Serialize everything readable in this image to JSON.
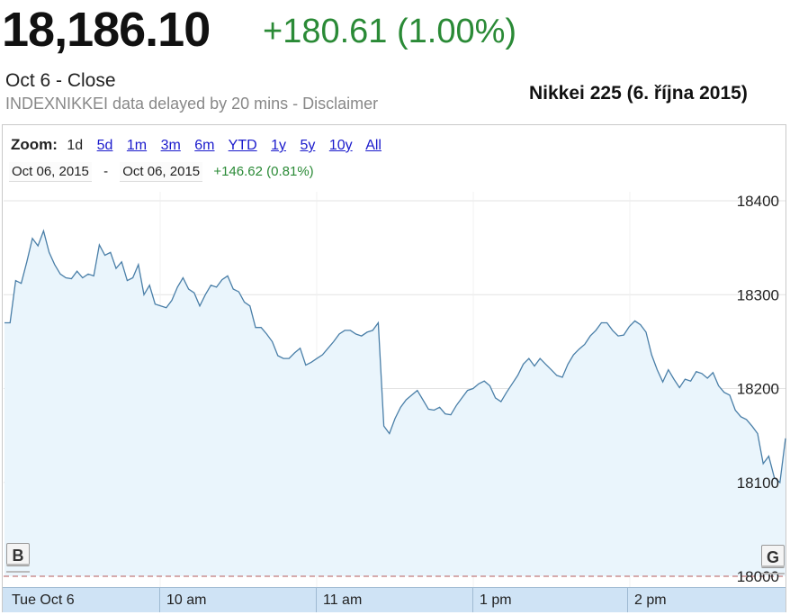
{
  "quote": {
    "price": "18,186.10",
    "change": "+180.61 (1.00%)",
    "close_label": "Oct 6 - Close",
    "delay_note": "INDEXNIKKEI data delayed by 20 mins - Disclaimer"
  },
  "caption": "Nikkei 225 (6. října 2015)",
  "zoom": {
    "label": "Zoom:",
    "options": [
      "1d",
      "5d",
      "1m",
      "3m",
      "6m",
      "YTD",
      "1y",
      "5y",
      "10y",
      "All"
    ],
    "active": "1d"
  },
  "range": {
    "start": "Oct 06, 2015",
    "separator": "-",
    "end": "Oct 06, 2015",
    "change": "+146.62 (0.81%)"
  },
  "nav": {
    "left": "B",
    "right": "G"
  },
  "time_axis": {
    "labels": [
      "Tue Oct 6",
      "10 am",
      "11 am",
      "1 pm",
      "2 pm"
    ]
  },
  "colors": {
    "line": "#4a7fa8",
    "fill": "#eaf5fc",
    "positive": "#2a8a36",
    "grid": "#e3e3e3",
    "baseline": "#b45a5a",
    "time_bar": "#cfe3f5"
  },
  "chart_data": {
    "type": "area",
    "title": "",
    "xlabel": "",
    "ylabel": "",
    "ylim": [
      18000,
      18400
    ],
    "yticks": [
      18000,
      18100,
      18200,
      18300,
      18400
    ],
    "xtick_labels": [
      "Tue Oct 6",
      "10 am",
      "11 am",
      "1 pm",
      "2 pm"
    ],
    "baseline": 18000,
    "series": [
      {
        "values": [
          18270,
          18270,
          18315,
          18312,
          18335,
          18360,
          18352,
          18368,
          18345,
          18332,
          18322,
          18318,
          18317,
          18325,
          18318,
          18322,
          18320,
          18353,
          18342,
          18345,
          18328,
          18335,
          18315,
          18318,
          18332,
          18300,
          18310,
          18290,
          18288,
          18286,
          18294,
          18308,
          18318,
          18306,
          18302,
          18288,
          18300,
          18310,
          18308,
          18316,
          18320,
          18306,
          18303,
          18292,
          18288,
          18265,
          18265,
          18258,
          18250,
          18235,
          18232,
          18232,
          18238,
          18243,
          18225,
          18228,
          18232,
          18236,
          18243,
          18250,
          18258,
          18262,
          18262,
          18258,
          18256,
          18260,
          18262,
          18270,
          18160,
          18152,
          18168,
          18180,
          18188,
          18193,
          18198,
          18188,
          18178,
          18177,
          18180,
          18173,
          18172,
          18182,
          18190,
          18198,
          18200,
          18205,
          18208,
          18203,
          18190,
          18186,
          18196,
          18205,
          18214,
          18226,
          18232,
          18224,
          18232,
          18226,
          18220,
          18214,
          18212,
          18226,
          18236,
          18242,
          18247,
          18256,
          18262,
          18270,
          18270,
          18262,
          18256,
          18257,
          18266,
          18272,
          18268,
          18260,
          18236,
          18220,
          18207,
          18220,
          18210,
          18201,
          18210,
          18208,
          18218,
          18216,
          18211,
          18217,
          18203,
          18196,
          18193,
          18177,
          18170,
          18167,
          18160,
          18152,
          18120,
          18128,
          18105,
          18100,
          18147
        ]
      }
    ]
  }
}
